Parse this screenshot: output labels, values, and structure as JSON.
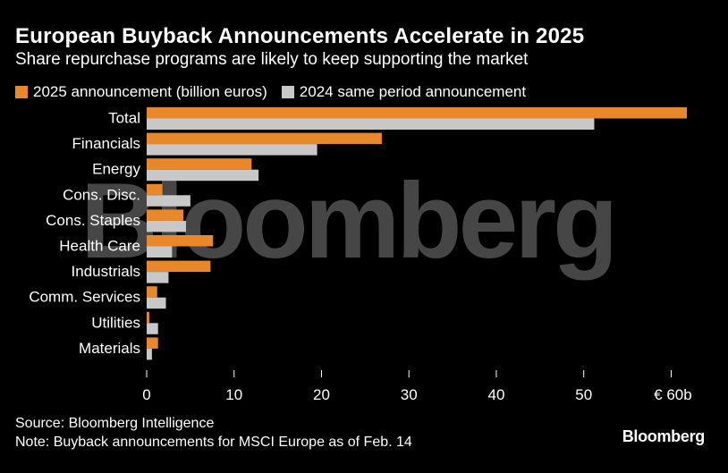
{
  "title": "European Buyback Announcements Accelerate in 2025",
  "subtitle": "Share repurchase programs are likely to keep supporting the market",
  "source": "Source: Bloomberg Intelligence",
  "note": "Note: Buyback announcements for MSCI Europe as of Feb. 14",
  "brand": "Bloomberg",
  "watermark": "Bloomberg",
  "colors": {
    "series_2025": "#e8882b",
    "series_2024": "#c8c8c8",
    "background": "#000000"
  },
  "chart_data": {
    "type": "bar",
    "orientation": "horizontal",
    "categories": [
      "Total",
      "Financials",
      "Energy",
      "Cons. Disc.",
      "Cons. Staples",
      "Health Care",
      "Industrials",
      "Comm. Services",
      "Utilities",
      "Materials"
    ],
    "series": [
      {
        "name": "2025 announcement (billion euros)",
        "values": [
          61.8,
          26.9,
          12.0,
          1.8,
          4.2,
          7.6,
          7.3,
          1.2,
          0.3,
          1.3
        ]
      },
      {
        "name": "2024 same period announcement",
        "values": [
          51.2,
          19.5,
          12.8,
          5.0,
          4.5,
          2.9,
          2.5,
          2.2,
          1.3,
          0.6
        ]
      }
    ],
    "xlim": [
      0,
      62
    ],
    "xticks": [
      {
        "value": 0,
        "label": "0"
      },
      {
        "value": 10,
        "label": "10"
      },
      {
        "value": 20,
        "label": "20"
      },
      {
        "value": 30,
        "label": "30"
      },
      {
        "value": 40,
        "label": "40"
      },
      {
        "value": 50,
        "label": "50"
      },
      {
        "value": 60,
        "label": "€ 60b"
      }
    ],
    "legend_position": "top-left",
    "grid": false
  }
}
